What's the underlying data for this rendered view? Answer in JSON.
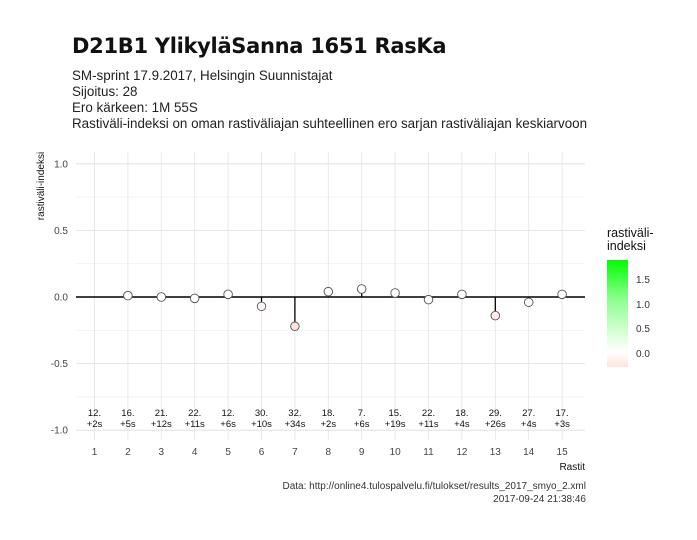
{
  "header": {
    "title": "D21B1 YlikyläSanna 1651 RasKa",
    "subtitle_lines": [
      "SM-sprint 17.9.2017, Helsingin Suunnistajat",
      "Sijoitus: 28",
      "Ero kärkeen: 1M 55S",
      "Rastiväli-indeksi on oman rastiväliajan suhteellinen ero sarjan rastiväliajan keskiarvoon"
    ]
  },
  "caption": {
    "source": "Data: http://online4.tulospalvelu.fi/tulokset/results_2017_smyo_2.xml",
    "timestamp": "2017-09-24 21:38:46"
  },
  "legend": {
    "title_line1": "rastiväli-",
    "title_line2": "indeksi",
    "labels": [
      "1.5",
      "1.0",
      "0.5",
      "0.0"
    ],
    "colors": {
      "high": "#00ff00",
      "mid": "#ffffff",
      "low": "#ffe4dc"
    }
  },
  "chart_data": {
    "type": "lollipop",
    "xlabel": "Rastit",
    "ylabel": "rastiväli-indeksi",
    "ylim": [
      -1.0,
      1.0
    ],
    "yticks": [
      -1.0,
      -0.5,
      0.0,
      0.5,
      1.0
    ],
    "ytick_labels": [
      "-1.0",
      "-0.5",
      "0.0",
      "0.5",
      "1.0"
    ],
    "x": [
      1,
      2,
      3,
      4,
      5,
      6,
      7,
      8,
      9,
      10,
      11,
      12,
      13,
      14,
      15
    ],
    "values": [
      null,
      0.01,
      0.0,
      -0.01,
      0.02,
      -0.07,
      -0.22,
      0.04,
      0.06,
      0.03,
      -0.02,
      0.02,
      -0.14,
      -0.04,
      0.02
    ],
    "annotations": [
      {
        "rank": "12.",
        "diff": "+2s"
      },
      {
        "rank": "16.",
        "diff": "+5s"
      },
      {
        "rank": "21.",
        "diff": "+12s"
      },
      {
        "rank": "22.",
        "diff": "+11s"
      },
      {
        "rank": "12.",
        "diff": "+6s"
      },
      {
        "rank": "30.",
        "diff": "+10s"
      },
      {
        "rank": "32.",
        "diff": "+34s"
      },
      {
        "rank": "18.",
        "diff": "+2s"
      },
      {
        "rank": "7.",
        "diff": "+6s"
      },
      {
        "rank": "15.",
        "diff": "+19s"
      },
      {
        "rank": "22.",
        "diff": "+11s"
      },
      {
        "rank": "18.",
        "diff": "+4s"
      },
      {
        "rank": "29.",
        "diff": "+26s"
      },
      {
        "rank": "27.",
        "diff": "+4s"
      },
      {
        "rank": "17.",
        "diff": "+3s"
      }
    ],
    "grid": true,
    "legend_position": "right"
  }
}
